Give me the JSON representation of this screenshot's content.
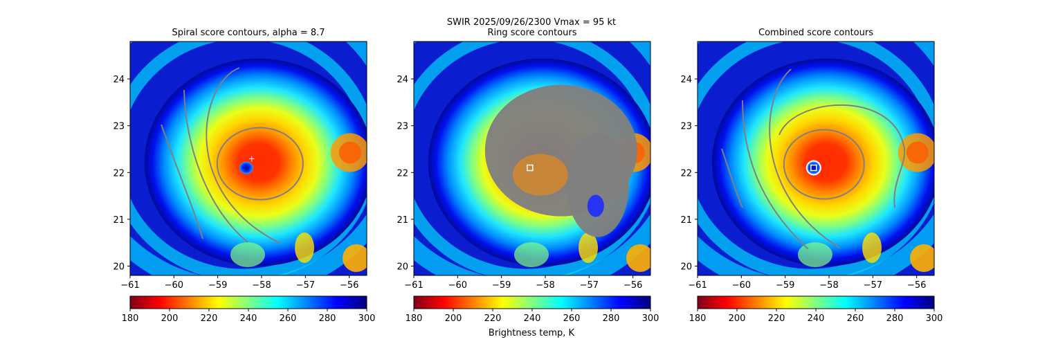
{
  "figure": {
    "suptitle_line1": "SWIR  2025/09/26/2300    Vmax = 95 kt",
    "colorbar_label": "Brightness temp, K",
    "colormap": [
      "#80001a",
      "#ff0000",
      "#ff8000",
      "#ffff00",
      "#80ff80",
      "#00ffff",
      "#0080ff",
      "#0000ff",
      "#000080"
    ],
    "contour_color": "#808080"
  },
  "chart_data": [
    {
      "type": "heatmap",
      "title": "Spiral score contours, alpha =  8.7",
      "x_ticks": [
        -61,
        -60,
        -59,
        -58,
        -57,
        -56
      ],
      "y_ticks": [
        20,
        21,
        22,
        23,
        24
      ],
      "xlim": [
        -61,
        -55.6
      ],
      "ylim": [
        19.8,
        24.8
      ],
      "colorbar": {
        "min": 180,
        "max": 300,
        "ticks": [
          180,
          200,
          220,
          240,
          260,
          280,
          300
        ]
      },
      "eye_center": [
        -58.35,
        22.1
      ],
      "best_center_marker": {
        "symbol": "+",
        "lon": -58.35,
        "lat": 22.3
      }
    },
    {
      "type": "heatmap",
      "title": "Ring score contours",
      "x_ticks": [
        -61,
        -60,
        -59,
        -58,
        -57,
        -56
      ],
      "y_ticks": [
        20,
        21,
        22,
        23,
        24
      ],
      "xlim": [
        -61,
        -55.6
      ],
      "ylim": [
        19.8,
        24.8
      ],
      "colorbar": {
        "min": 180,
        "max": 300,
        "ticks": [
          180,
          200,
          220,
          240,
          260,
          280,
          300
        ]
      },
      "eye_center": [
        -58.35,
        22.1
      ],
      "best_center_marker": {
        "symbol": "square",
        "lon": -58.35,
        "lat": 22.05
      }
    },
    {
      "type": "heatmap",
      "title": "Combined score contours",
      "x_ticks": [
        -61,
        -60,
        -59,
        -58,
        -57,
        -56
      ],
      "y_ticks": [
        20,
        21,
        22,
        23,
        24
      ],
      "xlim": [
        -61,
        -55.6
      ],
      "ylim": [
        19.8,
        24.8
      ],
      "colorbar": {
        "min": 180,
        "max": 300,
        "ticks": [
          180,
          200,
          220,
          240,
          260,
          280,
          300
        ]
      },
      "eye_center": [
        -58.35,
        22.1
      ],
      "best_center_marker": {
        "symbol": "square",
        "lon": -58.35,
        "lat": 22.1
      }
    }
  ]
}
